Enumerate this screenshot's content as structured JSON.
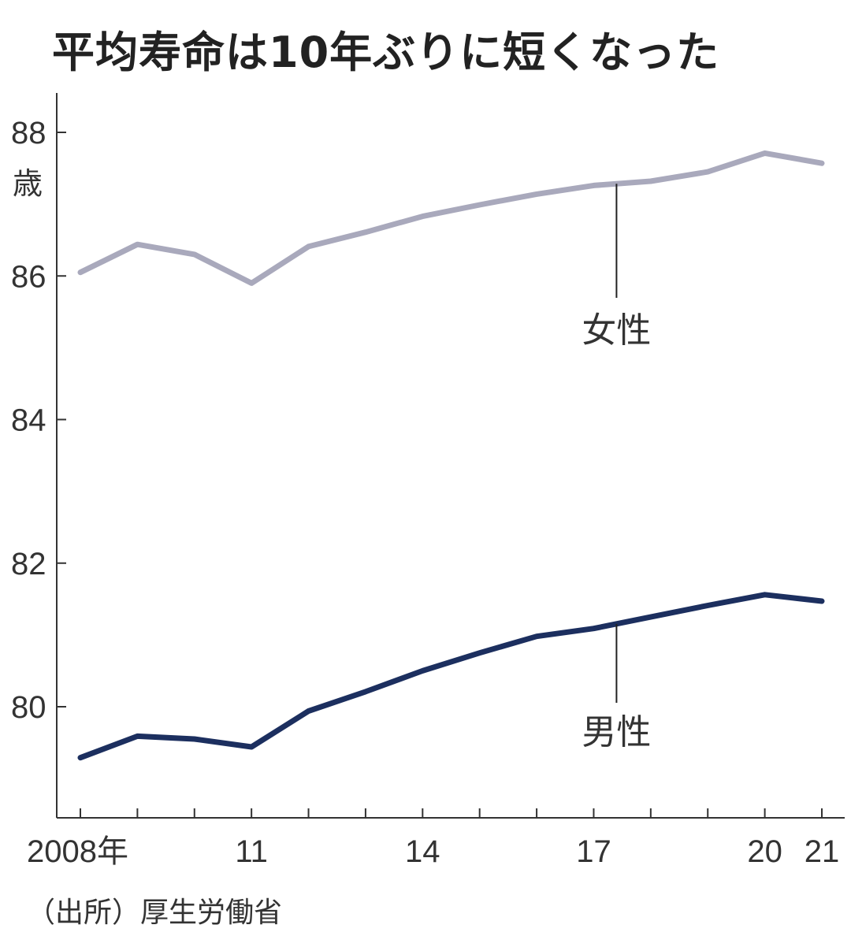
{
  "title": "平均寿命は10年ぶりに短くなった",
  "source": "（出所）厚生労働省",
  "chart_data": {
    "type": "line",
    "title": "平均寿命は10年ぶりに短くなった",
    "ylabel": "歳",
    "ylim": [
      78.6,
      88.6
    ],
    "yticks": [
      80,
      82,
      84,
      86,
      88
    ],
    "y_tick_labels": [
      "80",
      "82",
      "84",
      "86",
      "88"
    ],
    "xlim": [
      2008,
      2021
    ],
    "x": [
      2008,
      2009,
      2010,
      2011,
      2012,
      2013,
      2014,
      2015,
      2016,
      2017,
      2018,
      2019,
      2020,
      2021
    ],
    "x_tick_labels": [
      {
        "x": 2008,
        "label": "2008年"
      },
      {
        "x": 2011,
        "label": "11"
      },
      {
        "x": 2014,
        "label": "14"
      },
      {
        "x": 2017,
        "label": "17"
      },
      {
        "x": 2020,
        "label": "20"
      },
      {
        "x": 2021,
        "label": "21"
      }
    ],
    "grid": false,
    "series": [
      {
        "name": "女性",
        "color": "#a9a9bc",
        "values": [
          86.05,
          86.44,
          86.3,
          85.9,
          86.41,
          86.61,
          86.83,
          86.99,
          87.14,
          87.26,
          87.32,
          87.45,
          87.71,
          87.57
        ]
      },
      {
        "name": "男性",
        "color": "#1c2f5f",
        "values": [
          79.29,
          79.59,
          79.55,
          79.44,
          79.94,
          80.21,
          80.5,
          80.75,
          80.98,
          81.09,
          81.25,
          81.41,
          81.56,
          81.47
        ]
      }
    ]
  }
}
